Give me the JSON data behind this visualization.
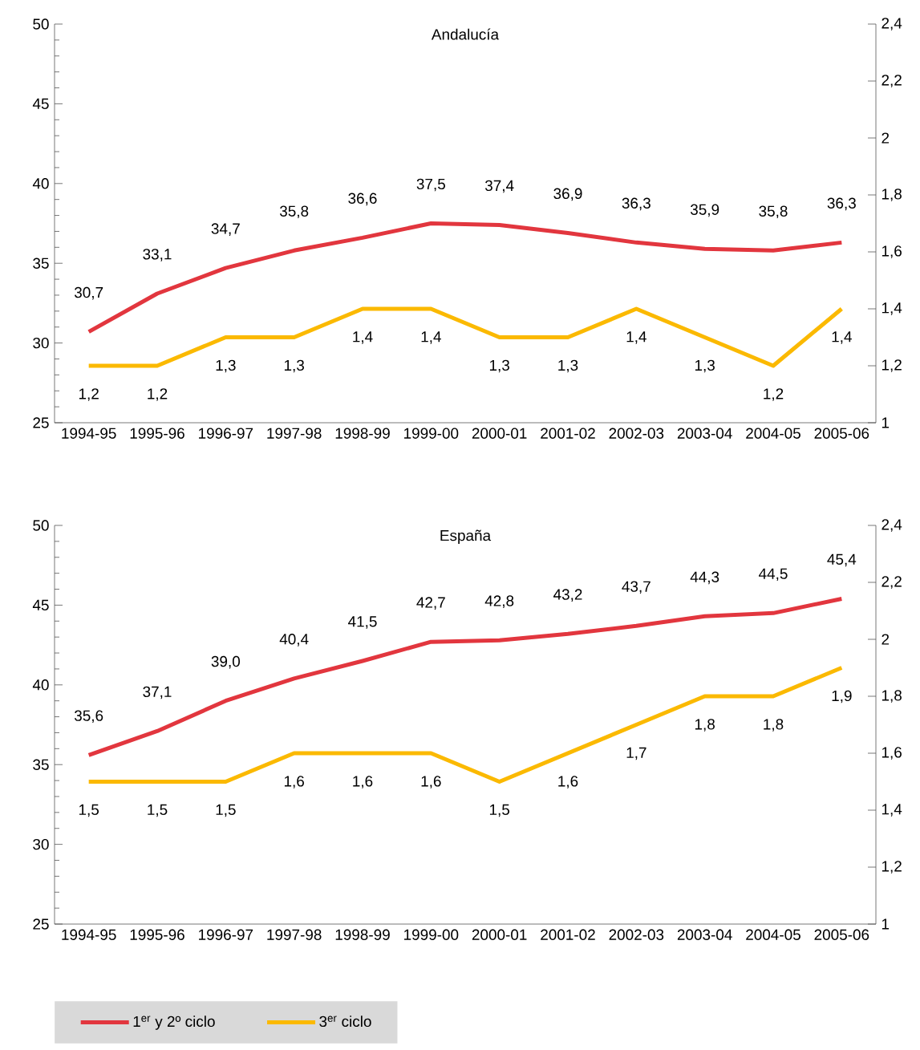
{
  "chart_data": [
    {
      "type": "line",
      "title": "Andalucía",
      "categories": [
        "1994-95",
        "1995-96",
        "1996-97",
        "1997-98",
        "1998-99",
        "1999-00",
        "2000-01",
        "2001-02",
        "2002-03",
        "2003-04",
        "2004-05",
        "2005-06"
      ],
      "ylim": [
        25,
        50
      ],
      "yticks": [
        25,
        30,
        35,
        40,
        45,
        50
      ],
      "y2lim": [
        1,
        2.4
      ],
      "y2ticks": [
        1,
        {
          "value": 1.2,
          "label": "1,2"
        },
        {
          "value": 1.4,
          "label": "1,4"
        },
        {
          "value": 1.6,
          "label": "1,6"
        },
        {
          "value": 1.8,
          "label": "1,8"
        },
        2,
        {
          "value": 2.2,
          "label": "2,2"
        },
        {
          "value": 2.4,
          "label": "2,4"
        }
      ],
      "legend": false,
      "series": [
        {
          "color": "#e2363e",
          "values": [
            30.7,
            33.1,
            34.7,
            35.8,
            36.6,
            37.5,
            37.4,
            36.9,
            36.3,
            35.9,
            35.8,
            36.3
          ],
          "value_labels": [
            "30,7",
            "33,1",
            "34,7",
            "35,8",
            "36,6",
            "37,5",
            "37,4",
            "36,9",
            "36,3",
            "35,9",
            "35,8",
            "36,3"
          ]
        },
        {
          "color": "#fbb900",
          "axis": "y2",
          "values": [
            1.2,
            1.2,
            1.3,
            1.3,
            1.4,
            1.4,
            1.3,
            1.3,
            1.4,
            1.3,
            1.2,
            1.4
          ],
          "value_labels": [
            "1,2",
            "1,2",
            "1,3",
            "1,3",
            "1,4",
            "1,4",
            "1,3",
            "1,3",
            "1,4",
            "1,3",
            "1,2",
            "1,4"
          ]
        }
      ]
    },
    {
      "type": "line",
      "title": "España",
      "categories": [
        "1994-95",
        "1995-96",
        "1996-97",
        "1997-98",
        "1998-99",
        "1999-00",
        "2000-01",
        "2001-02",
        "2002-03",
        "2003-04",
        "2004-05",
        "2005-06"
      ],
      "ylim": [
        25,
        50
      ],
      "yticks": [
        25,
        30,
        35,
        40,
        45,
        50
      ],
      "y2lim": [
        1,
        2.4
      ],
      "y2ticks": [
        1,
        {
          "value": 1.2,
          "label": "1,2"
        },
        {
          "value": 1.4,
          "label": "1,4"
        },
        {
          "value": 1.6,
          "label": "1,6"
        },
        {
          "value": 1.8,
          "label": "1,8"
        },
        2,
        {
          "value": 2.2,
          "label": "2,2"
        },
        {
          "value": 2.4,
          "label": "2,4"
        }
      ],
      "legend": "bottom",
      "series": [
        {
          "name": "1$^{er}$ y 2º ciclo",
          "color": "#e2363e",
          "values": [
            35.6,
            37.1,
            39.0,
            40.4,
            41.5,
            42.7,
            42.8,
            43.2,
            43.7,
            44.3,
            44.5,
            45.4
          ],
          "value_labels": [
            "35,6",
            "37,1",
            "39,0",
            "40,4",
            "41,5",
            "42,7",
            "42,8",
            "43,2",
            "43,7",
            "44,3",
            "44,5",
            "45,4"
          ]
        },
        {
          "name": "3$^{er}$ ciclo",
          "color": "#fbb900",
          "axis": "y2",
          "values": [
            1.5,
            1.5,
            1.5,
            1.6,
            1.6,
            1.6,
            1.5,
            1.6,
            1.7,
            1.8,
            1.8,
            1.9
          ],
          "value_labels": [
            "1,5",
            "1,5",
            "1,5",
            "1,6",
            "1,6",
            "1,6",
            "1,5",
            "1,6",
            "1,7",
            "1,8",
            "1,8",
            "1,9"
          ]
        }
      ]
    }
  ]
}
